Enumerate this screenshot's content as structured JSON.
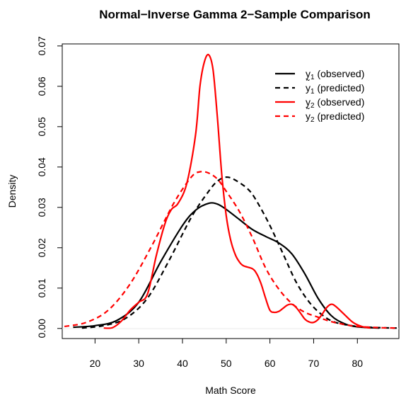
{
  "chart_data": {
    "type": "line",
    "title": "Normal−Inverse Gamma 2−Sample Comparison",
    "xlabel": "Math Score",
    "ylabel": "Density",
    "xlim": [
      12.5,
      89.5
    ],
    "ylim": [
      -0.0025,
      0.0705
    ],
    "x_ticks": [
      20,
      30,
      40,
      50,
      60,
      70,
      80
    ],
    "y_ticks": [
      0.0,
      0.01,
      0.02,
      0.03,
      0.04,
      0.05,
      0.06,
      0.07
    ],
    "y_tick_labels": [
      "0.00",
      "0.01",
      "0.02",
      "0.03",
      "0.04",
      "0.05",
      "0.06",
      "0.07"
    ],
    "grid": false,
    "legend_position": "top-right",
    "series": [
      {
        "name": "y",
        "subscript": "1",
        "suffix": " (observed)",
        "tilde": false,
        "color": "#000000",
        "dash": "solid",
        "points": [
          [
            15,
            0.0003
          ],
          [
            20,
            0.0007
          ],
          [
            25,
            0.002
          ],
          [
            30,
            0.0065
          ],
          [
            35,
            0.0165
          ],
          [
            40,
            0.0255
          ],
          [
            43,
            0.0293
          ],
          [
            46,
            0.031
          ],
          [
            48,
            0.0308
          ],
          [
            50,
            0.0295
          ],
          [
            53,
            0.027
          ],
          [
            56,
            0.0245
          ],
          [
            59,
            0.0228
          ],
          [
            62,
            0.0212
          ],
          [
            65,
            0.0185
          ],
          [
            68,
            0.0135
          ],
          [
            71,
            0.0075
          ],
          [
            74,
            0.0032
          ],
          [
            77,
            0.0012
          ],
          [
            80,
            0.0004
          ],
          [
            85,
            0.0001
          ]
        ]
      },
      {
        "name": "y",
        "subscript": "1",
        "suffix": " (predicted)",
        "tilde": true,
        "color": "#000000",
        "dash": "dashed",
        "points": [
          [
            17,
            0.0001
          ],
          [
            22,
            0.0007
          ],
          [
            27,
            0.0025
          ],
          [
            32,
            0.0075
          ],
          [
            37,
            0.017
          ],
          [
            42,
            0.0275
          ],
          [
            46,
            0.034
          ],
          [
            48,
            0.0365
          ],
          [
            50,
            0.0375
          ],
          [
            52,
            0.0368
          ],
          [
            55,
            0.0345
          ],
          [
            57,
            0.0315
          ],
          [
            60,
            0.0255
          ],
          [
            63,
            0.0185
          ],
          [
            66,
            0.0115
          ],
          [
            69,
            0.0065
          ],
          [
            72,
            0.0033
          ],
          [
            75,
            0.0015
          ],
          [
            80,
            0.0005
          ],
          [
            85,
            0.0002
          ],
          [
            89,
            0.0001
          ]
        ]
      },
      {
        "name": "y",
        "subscript": "2",
        "suffix": " (observed)",
        "tilde": false,
        "color": "#ff0000",
        "dash": "solid",
        "points": [
          [
            22,
            0.0001
          ],
          [
            24,
            0.0002
          ],
          [
            26,
            0.0018
          ],
          [
            28,
            0.0045
          ],
          [
            30,
            0.0065
          ],
          [
            32,
            0.0085
          ],
          [
            34,
            0.018
          ],
          [
            36,
            0.026
          ],
          [
            37.5,
            0.0295
          ],
          [
            39,
            0.031
          ],
          [
            41,
            0.036
          ],
          [
            43,
            0.048
          ],
          [
            44,
            0.06
          ],
          [
            45,
            0.066
          ],
          [
            46,
            0.0678
          ],
          [
            47,
            0.064
          ],
          [
            48,
            0.052
          ],
          [
            49,
            0.038
          ],
          [
            50,
            0.028
          ],
          [
            51,
            0.022
          ],
          [
            52,
            0.0185
          ],
          [
            53,
            0.0165
          ],
          [
            54,
            0.0155
          ],
          [
            56,
            0.0148
          ],
          [
            57,
            0.0135
          ],
          [
            58,
            0.011
          ],
          [
            59,
            0.0075
          ],
          [
            60,
            0.0045
          ],
          [
            61,
            0.004
          ],
          [
            62,
            0.0042
          ],
          [
            63,
            0.005
          ],
          [
            64,
            0.0058
          ],
          [
            65,
            0.006
          ],
          [
            66,
            0.0052
          ],
          [
            67,
            0.0038
          ],
          [
            68,
            0.0023
          ],
          [
            69,
            0.0016
          ],
          [
            70,
            0.0015
          ],
          [
            71,
            0.0022
          ],
          [
            72,
            0.0036
          ],
          [
            73,
            0.0052
          ],
          [
            74,
            0.006
          ],
          [
            75,
            0.0055
          ],
          [
            77,
            0.0035
          ],
          [
            79,
            0.0015
          ],
          [
            81,
            0.0005
          ],
          [
            83,
            0.0001
          ]
        ]
      },
      {
        "name": "y",
        "subscript": "2",
        "suffix": " (predicted)",
        "tilde": true,
        "color": "#ff0000",
        "dash": "dashed",
        "points": [
          [
            13,
            0.0005
          ],
          [
            18,
            0.0015
          ],
          [
            23,
            0.0045
          ],
          [
            28,
            0.011
          ],
          [
            33,
            0.0205
          ],
          [
            38,
            0.031
          ],
          [
            42,
            0.0375
          ],
          [
            44,
            0.0388
          ],
          [
            46,
            0.0385
          ],
          [
            48,
            0.037
          ],
          [
            50,
            0.034
          ],
          [
            53,
            0.029
          ],
          [
            56,
            0.0225
          ],
          [
            59,
            0.015
          ],
          [
            62,
            0.0098
          ],
          [
            65,
            0.0062
          ],
          [
            68,
            0.004
          ],
          [
            71,
            0.0028
          ],
          [
            74,
            0.0017
          ],
          [
            77,
            0.001
          ],
          [
            80,
            0.0005
          ],
          [
            85,
            0.0002
          ],
          [
            89,
            0.0001
          ]
        ]
      }
    ]
  }
}
